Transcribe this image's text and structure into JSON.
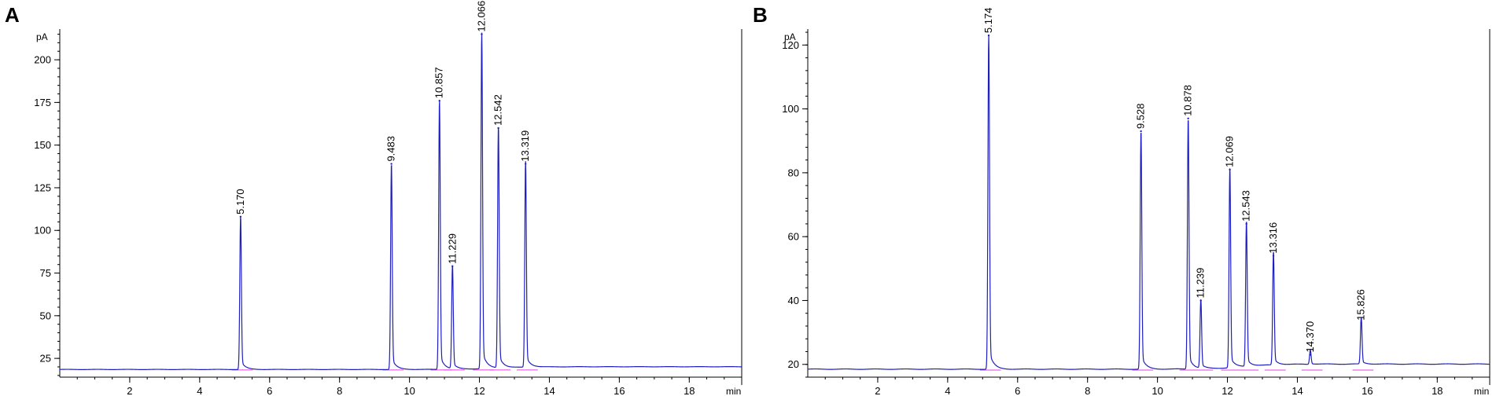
{
  "figure": {
    "panels": [
      {
        "letter": "A"
      },
      {
        "letter": "B"
      }
    ]
  },
  "colors": {
    "trace": "#1f1fbf",
    "baseline": "#e040e0",
    "axis": "#000000"
  },
  "chart_data": [
    {
      "type": "line",
      "panel": "A",
      "ylabel": "pA",
      "xlabel": "min",
      "xlim": [
        0,
        19.5
      ],
      "ylim": [
        14,
        218
      ],
      "xticks": [
        2,
        4,
        6,
        8,
        10,
        12,
        14,
        16,
        18
      ],
      "yticks": [
        25,
        50,
        75,
        100,
        125,
        150,
        175,
        200
      ],
      "baseline": 18.5,
      "peaks": [
        {
          "rt": 5.17,
          "height": 108,
          "label": "5.170"
        },
        {
          "rt": 9.483,
          "height": 139,
          "label": "9.483"
        },
        {
          "rt": 10.857,
          "height": 176,
          "label": "10.857"
        },
        {
          "rt": 11.229,
          "height": 79,
          "label": "11.229"
        },
        {
          "rt": 12.066,
          "height": 215,
          "label": "12.066"
        },
        {
          "rt": 12.542,
          "height": 160,
          "label": "12.542"
        },
        {
          "rt": 13.319,
          "height": 139,
          "label": "13.319"
        }
      ]
    },
    {
      "type": "line",
      "panel": "B",
      "ylabel": "pA",
      "xlabel": "min",
      "xlim": [
        0,
        19.5
      ],
      "ylim": [
        16,
        125
      ],
      "xticks": [
        2,
        4,
        6,
        8,
        10,
        12,
        14,
        16,
        18
      ],
      "yticks": [
        20,
        40,
        60,
        80,
        100,
        120
      ],
      "baseline": 18.5,
      "peaks": [
        {
          "rt": 5.174,
          "height": 123,
          "label": "5.174"
        },
        {
          "rt": 9.528,
          "height": 93,
          "label": "9.528"
        },
        {
          "rt": 10.878,
          "height": 97,
          "label": "10.878"
        },
        {
          "rt": 11.239,
          "height": 40,
          "label": "11.239"
        },
        {
          "rt": 12.069,
          "height": 81,
          "label": "12.069"
        },
        {
          "rt": 12.543,
          "height": 64,
          "label": "12.543"
        },
        {
          "rt": 13.316,
          "height": 54,
          "label": "13.316"
        },
        {
          "rt": 14.37,
          "height": 23,
          "label": "14.370"
        },
        {
          "rt": 15.826,
          "height": 33,
          "label": "15.826"
        }
      ]
    }
  ]
}
